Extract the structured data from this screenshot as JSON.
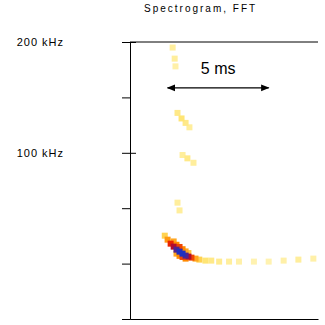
{
  "chart_data": {
    "type": "heatmap",
    "title": "Spectrogram, FFT",
    "xlim": [
      0,
      9.3
    ],
    "ylim": [
      -50,
      200
    ],
    "yticks": [
      {
        "value": 200,
        "label": "200 kHz"
      },
      {
        "value": 100,
        "label": "100 kHz"
      }
    ],
    "minor_yticks": [
      150,
      50,
      0,
      -50
    ],
    "tick_labels": "y",
    "zlim": [
      0,
      1
    ],
    "x": [
      1.72,
      1.86,
      2.01,
      2.16,
      2.3,
      2.45,
      2.6,
      2.75,
      2.89,
      3.04,
      3.24,
      3.43,
      3.73,
      4.02,
      4.41,
      4.9,
      5.39,
      6.13,
      6.86,
      7.6,
      8.33,
      9.07,
      2.16,
      2.3,
      2.45,
      2.6,
      2.75,
      2.89,
      2.45,
      2.6,
      2.75,
      2.3,
      2.35,
      2.55,
      2.75,
      2.94,
      2.6,
      2.84,
      3.14,
      2.11,
      2.21,
      2.25,
      2.35,
      2.45
    ],
    "y": [
      25.2,
      21.6,
      18.0,
      15.3,
      12.6,
      10.8,
      9.0,
      7.2,
      6.3,
      5.4,
      4.5,
      3.6,
      2.7,
      2.7,
      1.8,
      1.8,
      1.8,
      1.8,
      1.8,
      2.7,
      3.6,
      4.5,
      20,
      17,
      15,
      13,
      11,
      9.5,
      7,
      6,
      4.5,
      9,
      136,
      131,
      127,
      123,
      98,
      95,
      91,
      195,
      185,
      178,
      55,
      48
    ],
    "values": [
      0.35,
      0.55,
      0.75,
      0.85,
      0.95,
      1.0,
      1.0,
      0.95,
      0.85,
      0.7,
      0.5,
      0.35,
      0.25,
      0.2,
      0.18,
      0.15,
      0.12,
      0.1,
      0.1,
      0.12,
      0.15,
      0.12,
      0.5,
      0.6,
      0.7,
      0.6,
      0.5,
      0.4,
      0.6,
      0.7,
      0.6,
      0.5,
      0.2,
      0.25,
      0.2,
      0.15,
      0.15,
      0.2,
      0.15,
      0.15,
      0.15,
      0.12,
      0.15,
      0.15
    ],
    "annotations": [
      {
        "text": "5 ms",
        "x": [
          1.86,
          6.86
        ],
        "y": 158.6
      }
    ]
  }
}
